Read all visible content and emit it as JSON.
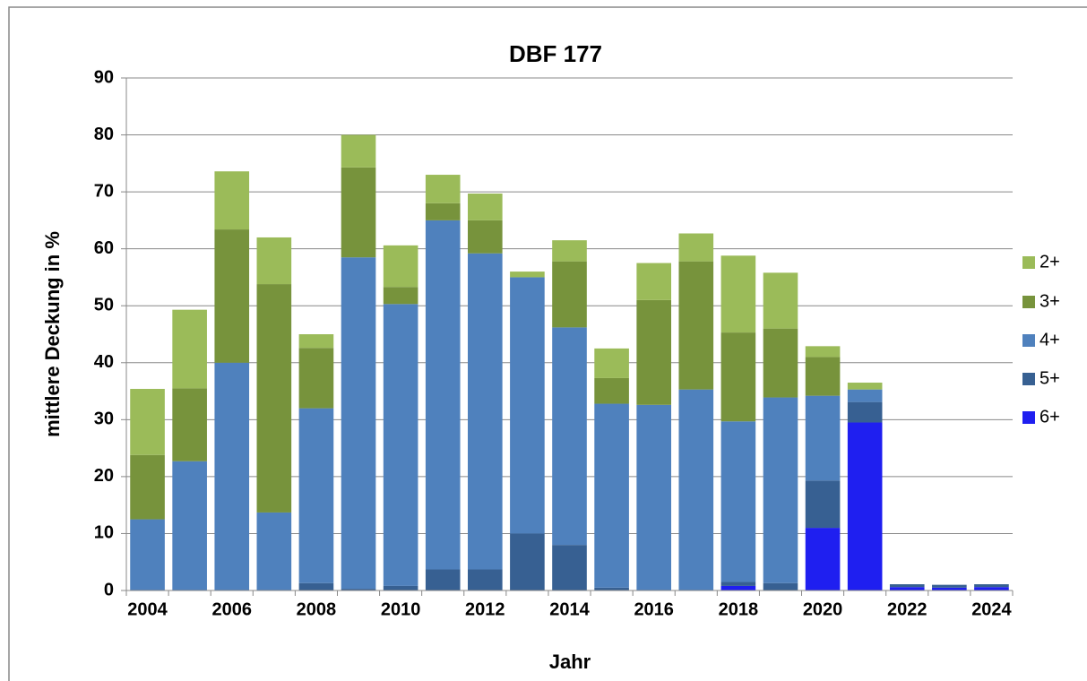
{
  "chart_data": {
    "type": "stacked_bar",
    "title": "DBF 177",
    "xlabel": "Jahr",
    "ylabel": "mittlere Deckung in %",
    "categories": [
      "2004",
      null,
      "2006",
      null,
      "2008",
      null,
      "2010",
      null,
      "2012",
      null,
      "2014",
      null,
      "2016",
      null,
      "2018",
      null,
      "2020",
      null,
      "2022",
      null,
      "2024"
    ],
    "series": [
      {
        "name": "6+",
        "color": "#1f1ff0",
        "values": [
          0,
          0,
          0,
          0,
          0,
          0,
          0,
          0,
          0,
          0,
          0,
          0,
          0,
          0,
          0.8,
          0,
          11,
          29.5,
          0.6,
          0.5,
          0.6
        ]
      },
      {
        "name": "5+",
        "color": "#376092",
        "values": [
          0,
          0,
          0,
          0,
          1.3,
          0.3,
          0.8,
          3.7,
          3.7,
          10,
          8,
          0.5,
          0,
          0,
          0.7,
          1.3,
          8.3,
          3.6,
          0.5,
          0.5,
          0.5
        ]
      },
      {
        "name": "4+",
        "color": "#4f81bd",
        "values": [
          12.5,
          22.7,
          40,
          13.7,
          30.7,
          58.2,
          49.5,
          61.3,
          55.5,
          45,
          38.2,
          32.3,
          32.6,
          35.3,
          28.2,
          32.6,
          14.9,
          2.2,
          0,
          0,
          0
        ]
      },
      {
        "name": "3+",
        "color": "#77933c",
        "values": [
          11.3,
          12.8,
          23.4,
          40.1,
          10.6,
          15.8,
          3.0,
          3.0,
          5.8,
          0,
          11.6,
          4.5,
          18.4,
          22.5,
          15.6,
          12.1,
          6.8,
          0,
          0,
          0,
          0
        ]
      },
      {
        "name": "2+",
        "color": "#9bbb59",
        "values": [
          11.6,
          13.8,
          10.2,
          8.2,
          2.4,
          5.7,
          7.3,
          5.0,
          4.7,
          1.0,
          3.7,
          5.2,
          6.5,
          4.9,
          13.5,
          9.8,
          1.9,
          1.2,
          0,
          0,
          0
        ]
      }
    ],
    "ylim": [
      0,
      90
    ],
    "yticks": [
      0,
      10,
      20,
      30,
      40,
      50,
      60,
      70,
      80,
      90
    ],
    "grid": true,
    "legend": "right"
  }
}
